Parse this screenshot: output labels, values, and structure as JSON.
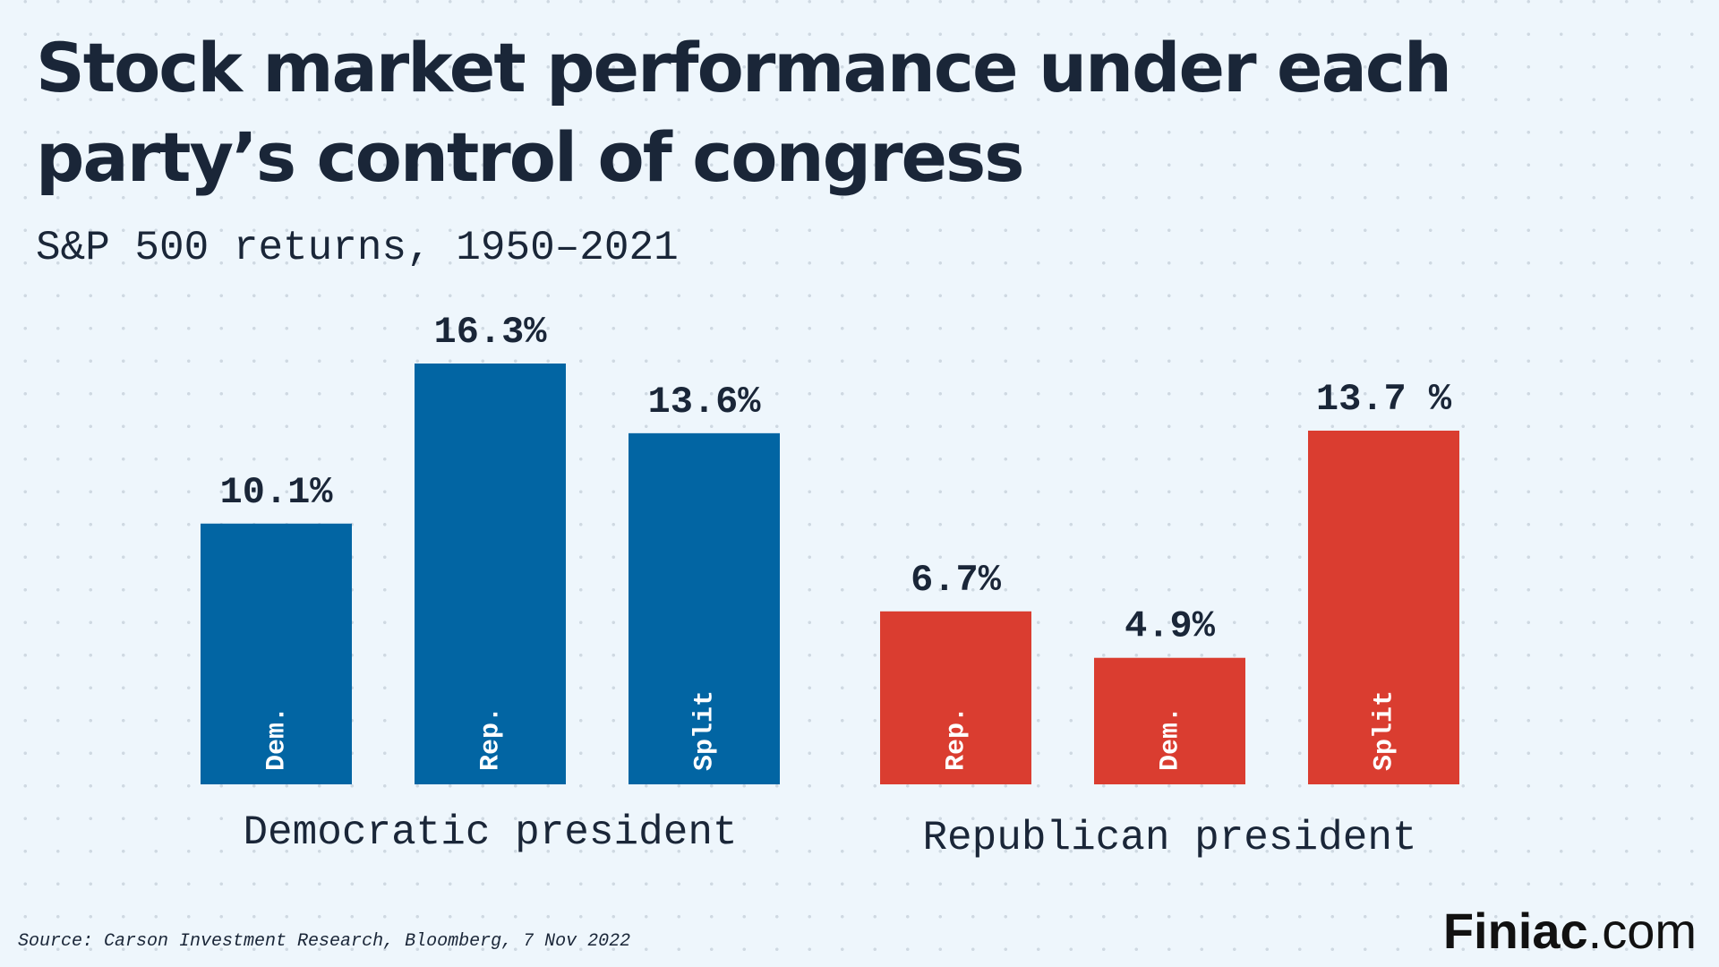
{
  "title": "Stock market performance under each party’s control of congress",
  "subtitle": "S&P 500 returns, 1950–2021",
  "source": "Source: Carson Investment Research, Bloomberg, 7 Nov 2022",
  "brand": {
    "name": "Finiac",
    "suffix": ".com"
  },
  "colors": {
    "democratic": "#0265a3",
    "republican": "#da3d30",
    "text": "#1a2638",
    "background": "#eef6fc"
  },
  "chart_data": {
    "type": "bar",
    "title": "Stock market performance under each party’s control of congress",
    "subtitle": "S&P 500 returns, 1950–2021",
    "unit": "%",
    "ylim": [
      0,
      16.3
    ],
    "grid": false,
    "legend": "none",
    "groups": [
      {
        "name": "Democratic president",
        "color": "#0265a3",
        "bars": [
          {
            "category": "Dem.",
            "value": 10.1,
            "label": "10.1%"
          },
          {
            "category": "Rep.",
            "value": 16.3,
            "label": "16.3%"
          },
          {
            "category": "Split",
            "value": 13.6,
            "label": "13.6%"
          }
        ]
      },
      {
        "name": "Republican president",
        "color": "#da3d30",
        "bars": [
          {
            "category": "Rep.",
            "value": 6.7,
            "label": "6.7%"
          },
          {
            "category": "Dem.",
            "value": 4.9,
            "label": "4.9%"
          },
          {
            "category": "Split",
            "value": 13.7,
            "label": "13.7 %"
          }
        ]
      }
    ]
  }
}
